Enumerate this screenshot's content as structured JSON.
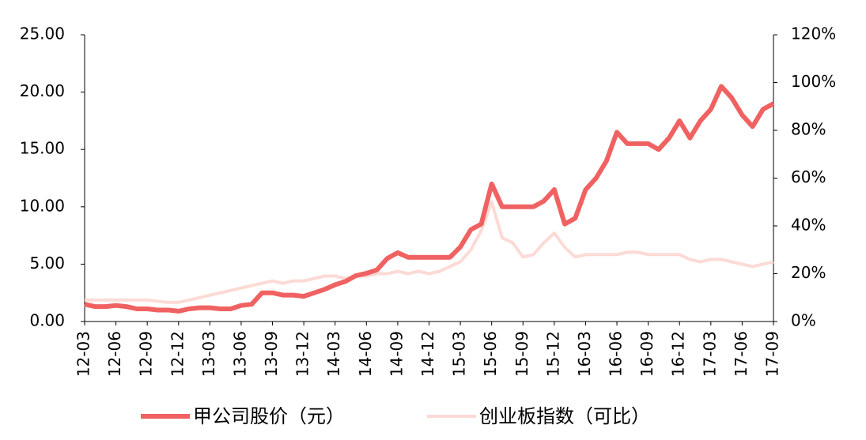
{
  "chart_data": {
    "type": "line",
    "categories": [
      "12-03",
      null,
      null,
      "12-06",
      null,
      null,
      "12-09",
      null,
      null,
      "12-12",
      null,
      null,
      "13-03",
      null,
      null,
      "13-06",
      null,
      null,
      "13-09",
      null,
      null,
      "13-12",
      null,
      null,
      "14-03",
      null,
      null,
      "14-06",
      null,
      null,
      "14-09",
      null,
      null,
      "14-12",
      null,
      null,
      "15-03",
      null,
      null,
      "15-06",
      null,
      null,
      "15-09",
      null,
      null,
      "15-12",
      null,
      null,
      "16-03",
      null,
      null,
      "16-06",
      null,
      null,
      "16-09",
      null,
      null,
      "16-12",
      null,
      null,
      "17-03",
      null,
      null,
      "17-06",
      null,
      null,
      "17-09"
    ],
    "series": [
      {
        "name": "甲公司股价（元）",
        "color": "#f06262",
        "values": [
          1.5,
          1.3,
          1.3,
          1.4,
          1.3,
          1.1,
          1.1,
          1.0,
          1.0,
          0.9,
          1.1,
          1.2,
          1.2,
          1.1,
          1.1,
          1.4,
          1.5,
          2.5,
          2.5,
          2.3,
          2.3,
          2.2,
          2.5,
          2.8,
          3.2,
          3.5,
          4.0,
          4.2,
          4.5,
          5.5,
          6.0,
          5.6,
          5.6,
          5.6,
          5.6,
          5.6,
          6.5,
          8.0,
          8.5,
          12.0,
          10.0,
          10.0,
          10.0,
          10.0,
          10.5,
          11.5,
          8.5,
          9.0,
          11.5,
          12.5,
          14.0,
          16.5,
          15.5,
          15.5,
          15.5,
          15.0,
          16.0,
          17.5,
          16.0,
          17.5,
          18.5,
          20.5,
          19.5,
          18.0,
          17.0,
          18.5,
          19.0
        ]
      },
      {
        "name": "创业板指数（可比）",
        "color": "#fcdad5",
        "axis": "y2",
        "values": [
          9,
          9,
          9,
          9,
          9,
          9,
          9,
          8.5,
          8,
          8,
          9,
          10,
          11,
          12,
          13,
          14,
          15,
          16,
          17,
          16,
          17,
          17,
          18,
          19,
          19,
          18,
          19,
          19,
          20,
          20,
          21,
          20,
          21,
          20,
          21,
          23,
          25,
          30,
          38,
          50,
          35,
          33,
          27,
          28,
          33,
          37,
          31,
          27,
          28,
          28,
          28,
          28,
          29,
          29,
          28,
          28,
          28,
          28,
          26,
          25,
          26,
          26,
          25,
          24,
          23,
          24,
          25
        ]
      }
    ],
    "ylim": [
      0,
      25
    ],
    "yticks": [
      {
        "value": 0,
        "label": "0.00"
      },
      {
        "value": 5,
        "label": "5.00"
      },
      {
        "value": 10,
        "label": "10.00"
      },
      {
        "value": 15,
        "label": "15.00"
      },
      {
        "value": 20,
        "label": "20.00"
      },
      {
        "value": 25,
        "label": "25.00"
      }
    ],
    "y2lim": [
      0,
      120
    ],
    "y2ticks": [
      {
        "value": 0,
        "label": "0%"
      },
      {
        "value": 20,
        "label": "20%"
      },
      {
        "value": 40,
        "label": "40%"
      },
      {
        "value": 60,
        "label": "60%"
      },
      {
        "value": 80,
        "label": "80%"
      },
      {
        "value": 100,
        "label": "100%"
      },
      {
        "value": 120,
        "label": "120%"
      }
    ],
    "legend": "bottom"
  }
}
